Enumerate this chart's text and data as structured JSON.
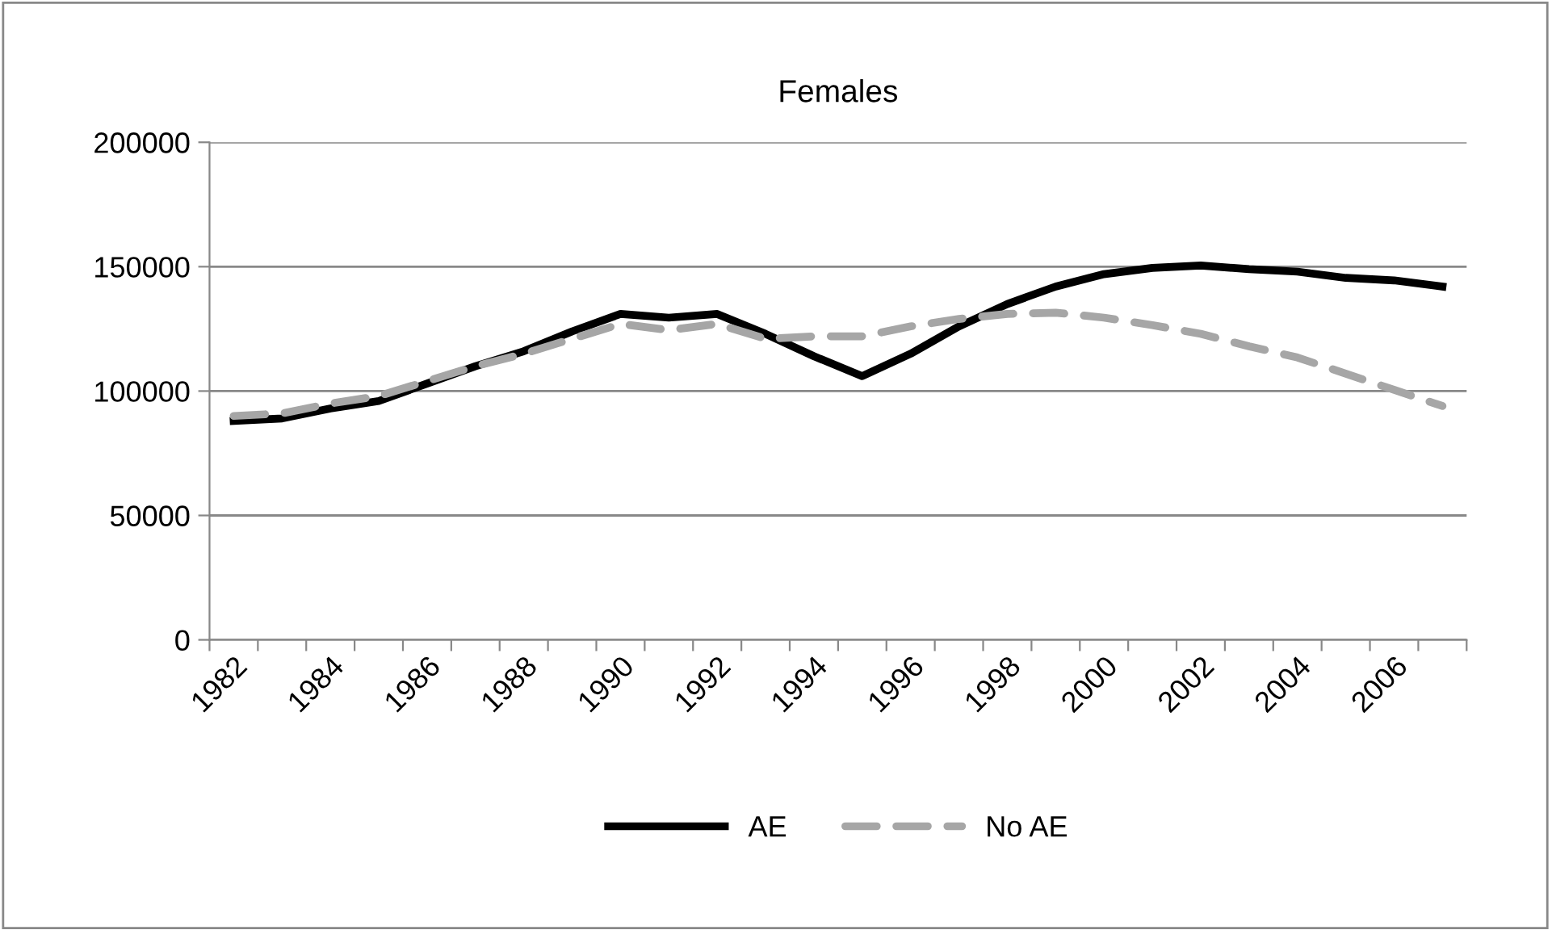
{
  "chart_data": {
    "type": "line",
    "title": "Females",
    "categories": [
      "1982",
      null,
      "1984",
      null,
      "1986",
      null,
      "1988",
      null,
      "1990",
      null,
      "1992",
      null,
      "1994",
      null,
      "1996",
      null,
      "1998",
      null,
      "2000",
      null,
      "2002",
      null,
      "2004",
      null,
      "2006",
      null
    ],
    "series": [
      {
        "name": "AE",
        "color": "#000000",
        "line_style": "solid",
        "values": [
          88000,
          89000,
          93000,
          96000,
          103000,
          110000,
          116000,
          124000,
          131000,
          129500,
          131000,
          123000,
          114000,
          106000,
          115000,
          126000,
          135000,
          142000,
          147000,
          149500,
          150500,
          149000,
          148000,
          145500,
          144500,
          142000
        ]
      },
      {
        "name": "No AE",
        "color": "#a6a6a6",
        "line_style": "dashed",
        "values": [
          90000,
          91000,
          95000,
          98000,
          104000,
          110000,
          115000,
          121000,
          127000,
          124500,
          127000,
          121000,
          122000,
          122000,
          126000,
          129000,
          131000,
          131500,
          129500,
          126500,
          123000,
          118000,
          113500,
          107000,
          100500,
          94000
        ]
      }
    ],
    "ylim": [
      0,
      200000
    ],
    "yticks": [
      0,
      50000,
      100000,
      150000,
      200000
    ],
    "grid": "y",
    "legend": "bottom",
    "marker": "none"
  }
}
